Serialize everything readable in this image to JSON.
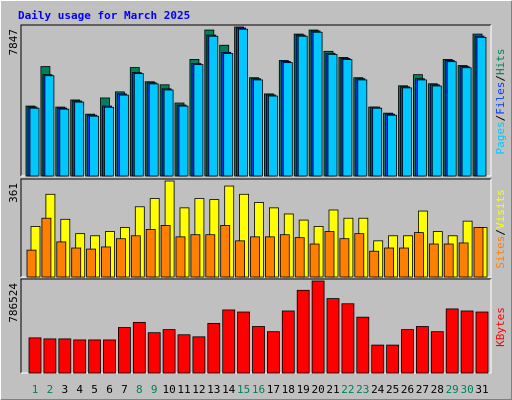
{
  "title": "Daily usage for March 2025",
  "legend_separator": "/",
  "chart_data": [
    {
      "type": "bar",
      "ylim": [
        0,
        7847
      ],
      "yticks": [
        7847
      ],
      "series": [
        {
          "name": "Hits",
          "color": "#00805c",
          "values": [
            3683,
            5765,
            3630,
            4004,
            3256,
            4110,
            4431,
            5712,
            4964,
            4804,
            3843,
            6139,
            7687,
            6886,
            7847,
            5178,
            4324,
            6085,
            7473,
            7687,
            6566,
            6245,
            5178,
            3630,
            3310,
            4751,
            5338,
            4858,
            6139,
            5818,
            7473
          ]
        },
        {
          "name": "Files",
          "color": "#0040ff",
          "values": [
            3630,
            5338,
            3576,
            3950,
            3203,
            3683,
            4324,
            5445,
            4911,
            4591,
            3737,
            5925,
            7420,
            6512,
            7794,
            5124,
            4270,
            6032,
            7420,
            7633,
            6459,
            6192,
            5124,
            3630,
            3256,
            4697,
            5124,
            4804,
            6085,
            5765,
            7366
          ]
        },
        {
          "name": "Pages",
          "color": "#00c8ff",
          "values": [
            3570,
            5280,
            3520,
            3890,
            3150,
            3620,
            4260,
            5390,
            4850,
            4530,
            3680,
            5870,
            7360,
            6450,
            7730,
            5060,
            4210,
            5970,
            7360,
            7570,
            6400,
            6130,
            5060,
            3570,
            3200,
            4640,
            5060,
            4740,
            6020,
            5700,
            7300
          ]
        }
      ]
    },
    {
      "type": "bar",
      "ylim": [
        0,
        361
      ],
      "yticks": [
        361
      ],
      "series": [
        {
          "name": "Visits",
          "color": "#ffff00",
          "values": [
            190,
            311,
            217,
            163,
            155,
            171,
            186,
            264,
            295,
            361,
            260,
            295,
            291,
            342,
            311,
            280,
            260,
            237,
            214,
            190,
            252,
            221,
            221,
            136,
            155,
            155,
            248,
            171,
            155,
            210,
            186
          ]
        },
        {
          "name": "Sites",
          "color": "#ff8000",
          "values": [
            101,
            221,
            132,
            109,
            105,
            113,
            144,
            155,
            179,
            194,
            151,
            159,
            159,
            194,
            136,
            151,
            151,
            159,
            148,
            124,
            171,
            144,
            163,
            97,
            109,
            109,
            167,
            124,
            124,
            128,
            186
          ]
        }
      ]
    },
    {
      "type": "bar",
      "ylim": [
        0,
        786524
      ],
      "yticks": [
        786524
      ],
      "categories": [
        1,
        2,
        3,
        4,
        5,
        6,
        7,
        8,
        9,
        10,
        11,
        12,
        13,
        14,
        15,
        16,
        17,
        18,
        19,
        20,
        21,
        22,
        23,
        24,
        25,
        26,
        27,
        28,
        29,
        30,
        31
      ],
      "category_colors": [
        "#00805c",
        "#00805c",
        "#000000",
        "#000000",
        "#000000",
        "#000000",
        "#000000",
        "#00805c",
        "#00805c",
        "#000000",
        "#000000",
        "#000000",
        "#000000",
        "#000000",
        "#00805c",
        "#00805c",
        "#000000",
        "#000000",
        "#000000",
        "#000000",
        "#000000",
        "#00805c",
        "#00805c",
        "#000000",
        "#000000",
        "#000000",
        "#000000",
        "#000000",
        "#00805c",
        "#00805c",
        "#000000"
      ],
      "series": [
        {
          "name": "KBytes",
          "color": "#ff0000",
          "values": [
            300458,
            291621,
            291621,
            282784,
            282784,
            282784,
            388828,
            433013,
            344643,
            371154,
            326969,
            309295,
            424176,
            539057,
            521383,
            397665,
            353480,
            530220,
            706960,
            786524,
            636264,
            592079,
            477198,
            238599,
            238599,
            371154,
            397665,
            353480,
            547894,
            530220,
            521383
          ]
        }
      ]
    }
  ]
}
